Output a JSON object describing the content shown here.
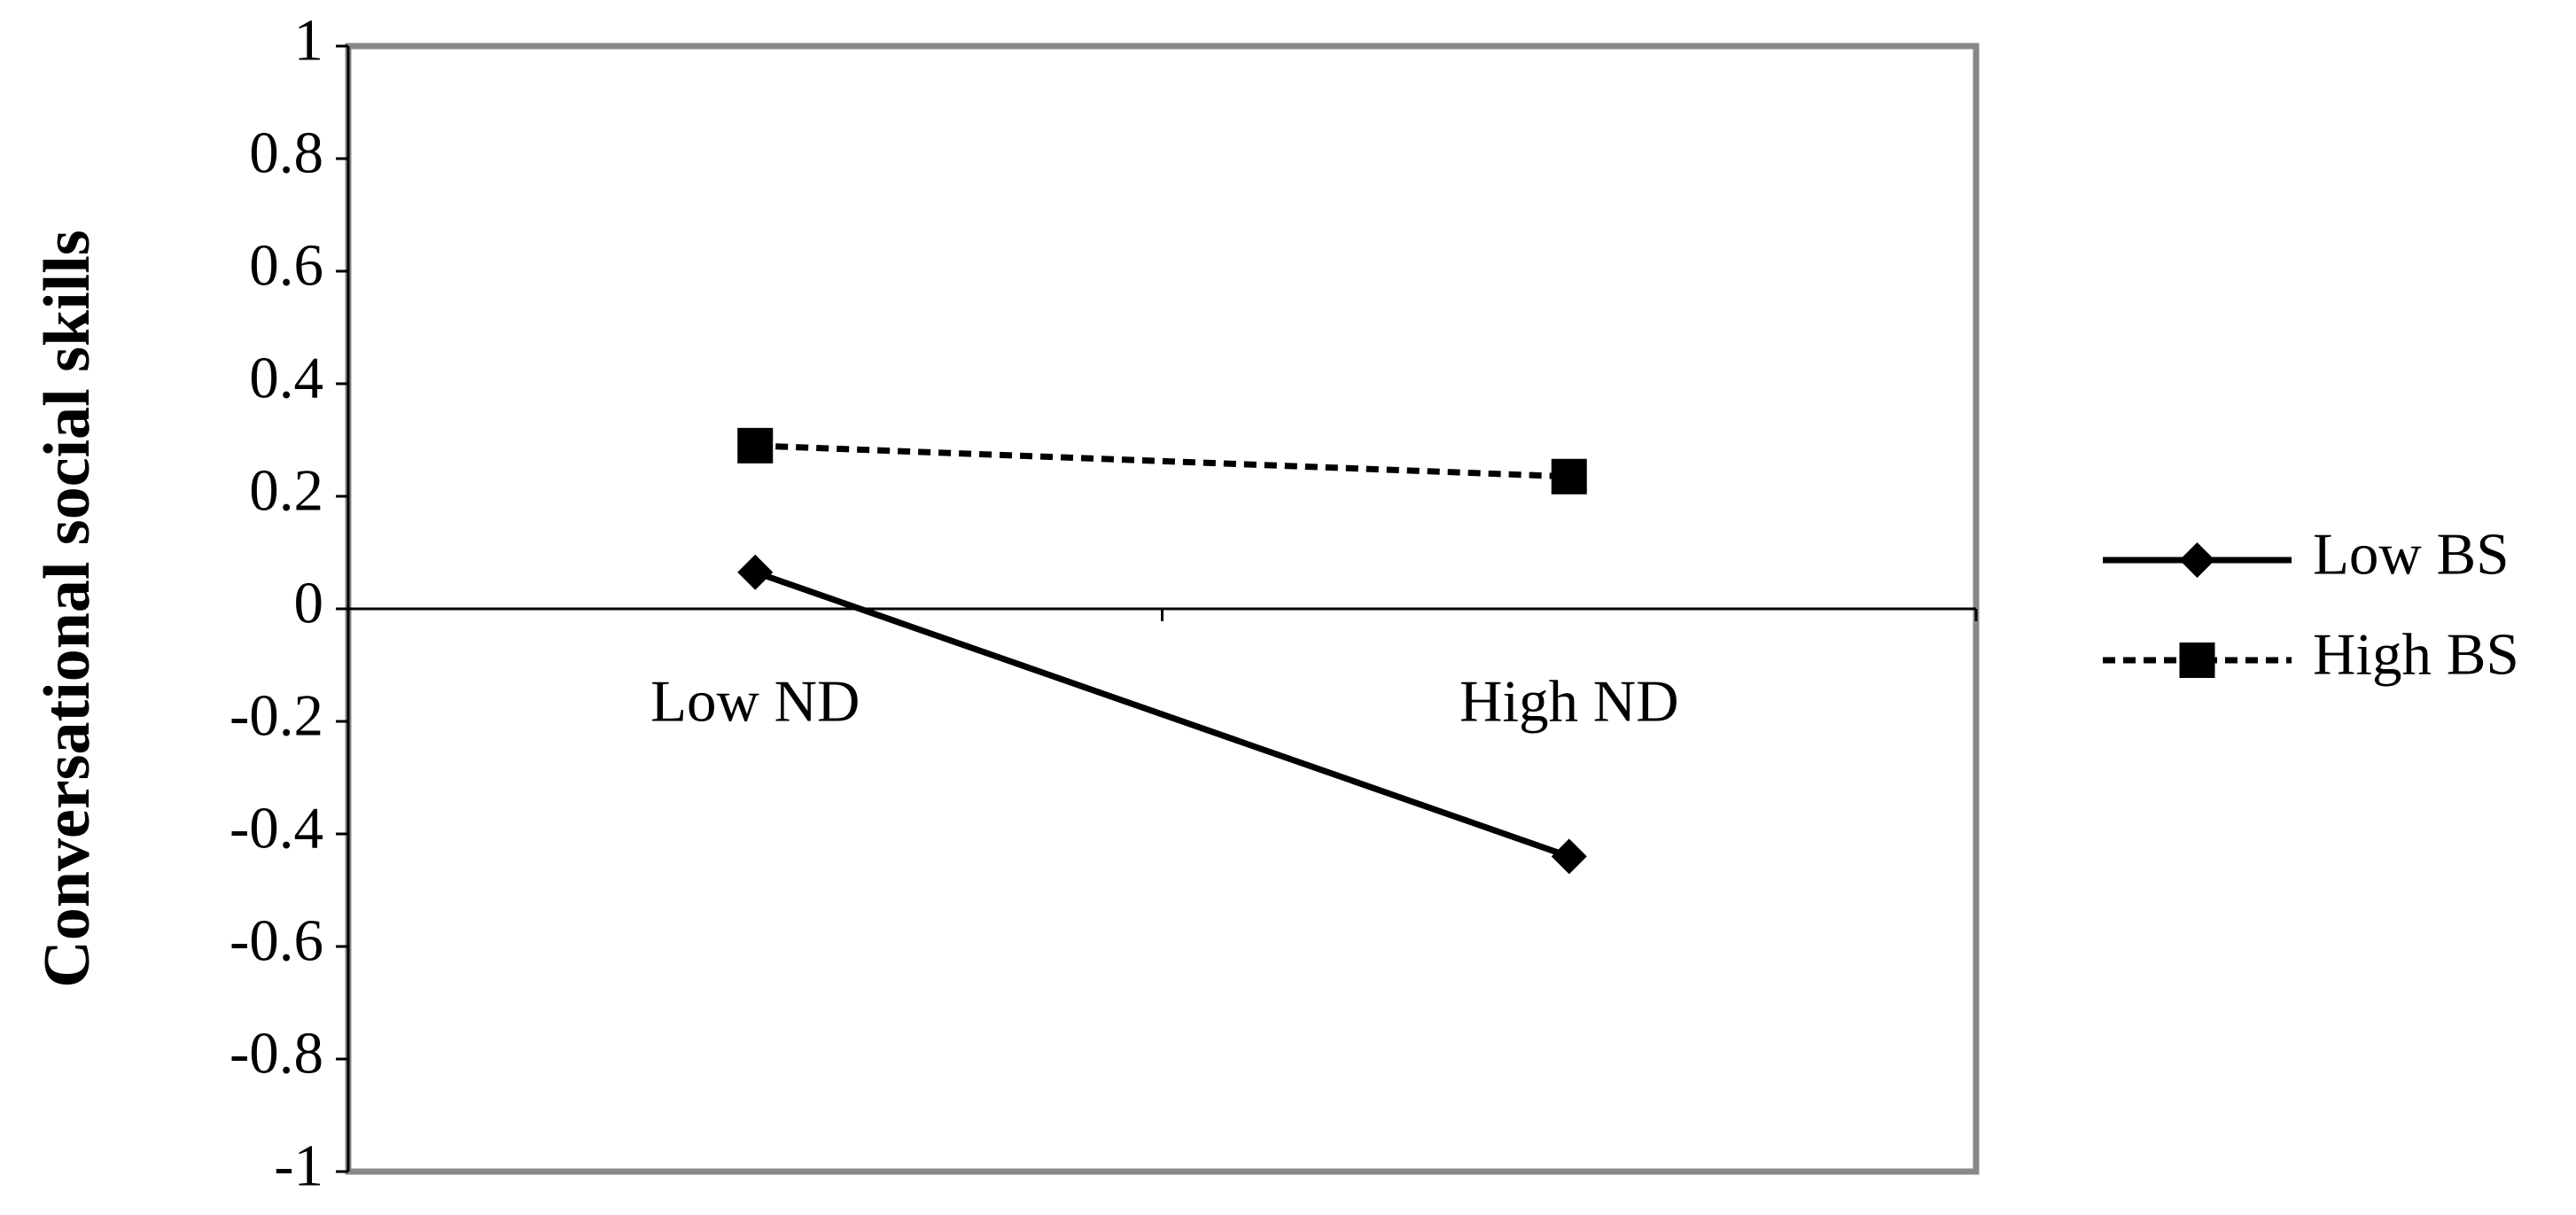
{
  "chart_data": {
    "type": "line",
    "y_label": "Conversational social skills",
    "categories": [
      "Low ND",
      "High ND"
    ],
    "series": [
      {
        "name": "Low BS",
        "color": "#000000",
        "dash": "solid",
        "marker": "diamond",
        "values": [
          0.065,
          -0.44
        ]
      },
      {
        "name": "High BS",
        "color": "#000000",
        "dash": "dashed",
        "marker": "square",
        "values": [
          0.29,
          0.235
        ]
      }
    ],
    "ylim": [
      -1,
      1
    ],
    "yticks": [
      -1,
      -0.8,
      -0.6,
      -0.4,
      -0.2,
      0,
      0.2,
      0.4,
      0.6,
      0.8,
      1
    ],
    "grid": false,
    "legend": "right"
  }
}
